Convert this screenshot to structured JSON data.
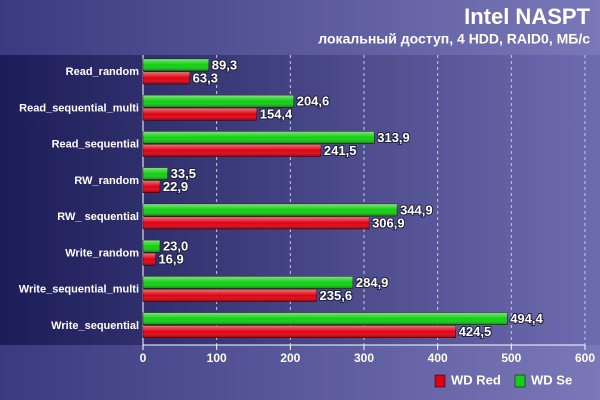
{
  "chart_data": {
    "type": "hbar",
    "title": "Intel NASPT",
    "subtitle": "локальный доступ, 4 HDD, RAID0, МБ/с",
    "categories": [
      "Read_random",
      "Read_sequential_multi",
      "Read_sequential",
      "RW_random",
      "RW_ sequential",
      "Write_random",
      "Write_sequential_multi",
      "Write_sequential"
    ],
    "series": [
      {
        "name": "WD Red",
        "color": "#e00010",
        "values": [
          63.3,
          154.4,
          241.5,
          22.9,
          306.9,
          16.9,
          235.6,
          424.5
        ],
        "value_labels": [
          "63,3",
          "154,4",
          "241,5",
          "22,9",
          "306,9",
          "16,9",
          "235,6",
          "424,5"
        ]
      },
      {
        "name": "WD Se",
        "color": "#10d010",
        "values": [
          89.3,
          204.6,
          313.9,
          33.5,
          344.9,
          23.0,
          284.9,
          494.4
        ],
        "value_labels": [
          "89,3",
          "204,6",
          "313,9",
          "33,5",
          "344,9",
          "23,0",
          "284,9",
          "494,4"
        ]
      }
    ],
    "xlim": [
      0,
      600
    ],
    "xticks": [
      0,
      100,
      200,
      300,
      400,
      500,
      600
    ],
    "grid": true,
    "legend": "bottom-right"
  }
}
